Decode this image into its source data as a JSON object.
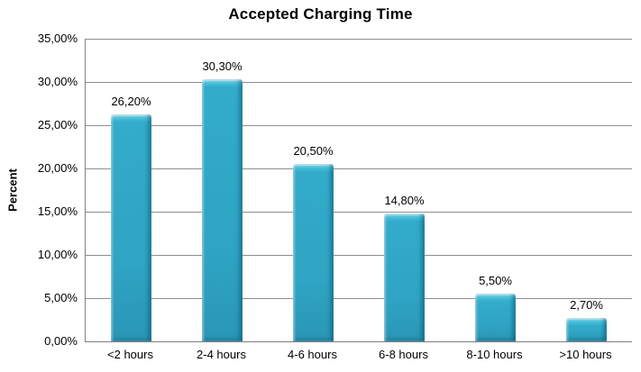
{
  "page": {
    "background": "#ffffff"
  },
  "chart_data": {
    "type": "bar",
    "title": "Accepted Charging Time",
    "ylabel": "Percent",
    "xlabel": "",
    "categories": [
      "<2 hours",
      "2-4 hours",
      "4-6 hours",
      "6-8 hours",
      "8-10 hours",
      ">10 hours"
    ],
    "values": [
      26.2,
      30.3,
      20.5,
      14.8,
      5.5,
      2.7
    ],
    "value_labels": [
      "26,20%",
      "30,30%",
      "20,50%",
      "14,80%",
      "5,50%",
      "2,70%"
    ],
    "ylim": [
      0,
      35
    ],
    "ytick_step": 5,
    "ytick_labels": [
      "0,00%",
      "5,00%",
      "10,00%",
      "15,00%",
      "20,00%",
      "25,00%",
      "30,00%",
      "35,00%"
    ],
    "grid": true,
    "legend_position": "none",
    "decimal_separator": ",",
    "colors": {
      "bar_fill": "#2FA4C4",
      "bar_highlight": "#7DE0F1",
      "bar_shadow": "#1C7D9A",
      "gridline": "#8E8E8E",
      "axis_line": "#808080",
      "text": "#000000",
      "background": "#FFFFFF"
    }
  }
}
